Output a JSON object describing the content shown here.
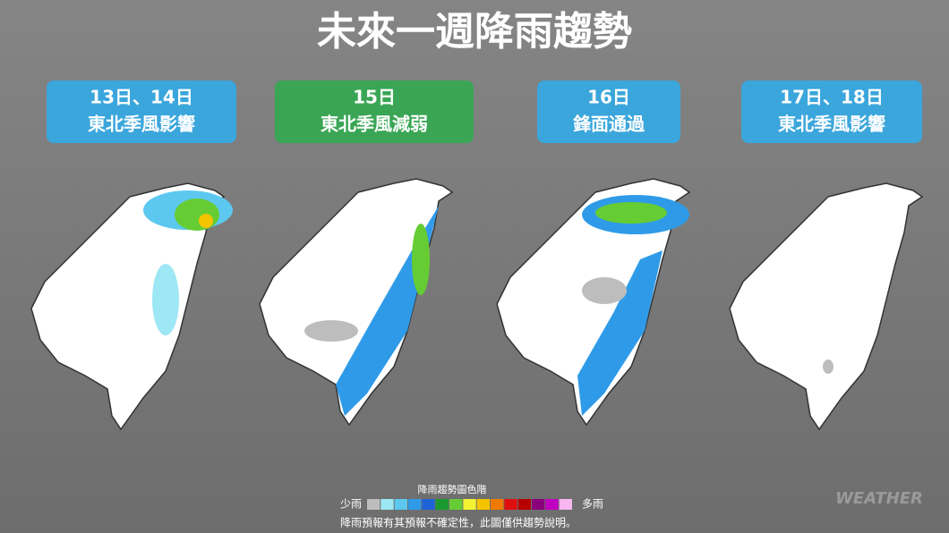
{
  "title": "未來一週降雨趨勢",
  "panels": [
    {
      "date": "13日、14日",
      "desc": "東北季風影響",
      "color": "#3ba6dc"
    },
    {
      "date": "15日",
      "desc": "東北季風減弱",
      "color": "#3aa655"
    },
    {
      "date": "16日",
      "desc": "鋒面通過",
      "color": "#3ba6dc"
    },
    {
      "date": "17日、18日",
      "desc": "東北季風影響",
      "color": "#3ba6dc"
    }
  ],
  "legend": {
    "title": "降雨趨勢圖色階",
    "low": "少雨",
    "high": "多雨",
    "colors": [
      "#bdbdbd",
      "#9ee7f5",
      "#5cc8f0",
      "#2f9be8",
      "#1e63d6",
      "#1a9a2e",
      "#66cc33",
      "#f2f233",
      "#f5c400",
      "#f07a00",
      "#e01010",
      "#b80000",
      "#8b007a",
      "#c000c0",
      "#f7b6f0"
    ]
  },
  "note": "降雨預報有其預報不確定性，此圖僅供趨勢說明。",
  "watermark": "WEATHER"
}
